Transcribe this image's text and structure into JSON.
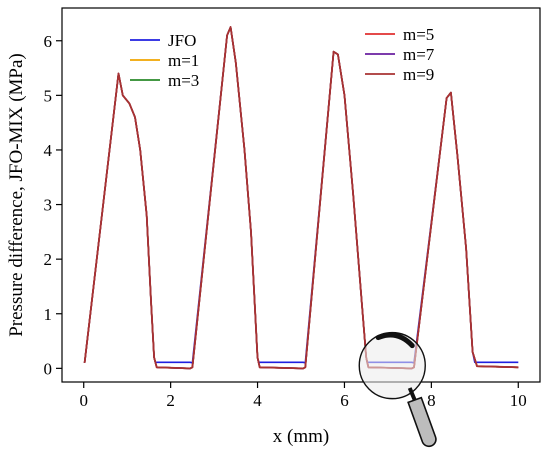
{
  "chart_data": {
    "type": "line",
    "xlabel": "x (mm)",
    "ylabel": "Pressure difference, JFO-MIX (MPa)",
    "xlim": [
      -0.5,
      10.5
    ],
    "ylim": [
      -0.25,
      6.6
    ],
    "xticks": [
      0,
      2,
      4,
      6,
      8,
      10
    ],
    "xtick_labels": [
      "0",
      "2",
      "4",
      "6",
      "8",
      "10"
    ],
    "yticks": [
      0,
      1,
      2,
      3,
      4,
      5,
      6
    ],
    "ytick_labels": [
      "0",
      "1",
      "2",
      "3",
      "4",
      "5",
      "6"
    ],
    "grid": false,
    "legend": [
      {
        "columns": "left",
        "entries": [
          "JFO",
          "m=1",
          "m=3"
        ]
      },
      {
        "columns": "right",
        "entries": [
          "m=5",
          "m=7",
          "m=9"
        ]
      }
    ],
    "series": [
      {
        "name": "JFO",
        "color": "#1f1fe0",
        "x": [
          0.02,
          0.8,
          0.9,
          1.05,
          1.18,
          1.3,
          1.45,
          1.55,
          1.62,
          1.65,
          2.45,
          2.5,
          3.3,
          3.38,
          3.5,
          3.7,
          3.85,
          4.0,
          4.03,
          5.05,
          5.1,
          5.75,
          5.85,
          6.0,
          6.2,
          6.4,
          6.5,
          6.52,
          7.55,
          7.6,
          8.35,
          8.45,
          8.6,
          8.8,
          8.95,
          9.0,
          10.0
        ],
        "y": [
          0.1,
          5.4,
          5.0,
          4.85,
          4.6,
          4.0,
          2.8,
          1.2,
          0.2,
          0.11,
          0.11,
          0.1,
          6.1,
          6.25,
          5.6,
          4.0,
          2.5,
          0.2,
          0.11,
          0.11,
          0.1,
          5.8,
          5.75,
          5.0,
          3.2,
          1.2,
          0.2,
          0.11,
          0.11,
          0.1,
          4.95,
          5.05,
          3.9,
          2.2,
          0.3,
          0.11,
          0.11
        ]
      },
      {
        "name": "m=1",
        "color": "#f0a500",
        "x": [
          0.02,
          0.8,
          0.9,
          1.05,
          1.18,
          1.3,
          1.45,
          1.55,
          1.62,
          1.68,
          2.45,
          2.5,
          3.3,
          3.38,
          3.5,
          3.7,
          3.85,
          4.0,
          4.05,
          5.05,
          5.1,
          5.75,
          5.85,
          6.0,
          6.2,
          6.4,
          6.5,
          6.55,
          7.55,
          7.6,
          8.35,
          8.45,
          8.6,
          8.8,
          8.95,
          9.05,
          10.0
        ],
        "y": [
          0.1,
          5.4,
          5.0,
          4.85,
          4.6,
          4.0,
          2.8,
          1.2,
          0.2,
          0.02,
          0.0,
          0.02,
          6.1,
          6.25,
          5.6,
          4.0,
          2.5,
          0.2,
          0.02,
          0.0,
          0.02,
          5.8,
          5.75,
          5.0,
          3.2,
          1.2,
          0.2,
          0.02,
          0.0,
          0.02,
          4.95,
          5.05,
          3.9,
          2.2,
          0.3,
          0.04,
          0.02
        ]
      },
      {
        "name": "m=3",
        "color": "#2a8a2a",
        "x": [
          0.02,
          0.8,
          0.9,
          1.05,
          1.18,
          1.3,
          1.45,
          1.55,
          1.62,
          1.68,
          2.45,
          2.5,
          3.3,
          3.38,
          3.5,
          3.7,
          3.85,
          4.0,
          4.05,
          5.05,
          5.1,
          5.75,
          5.85,
          6.0,
          6.2,
          6.4,
          6.5,
          6.55,
          7.55,
          7.6,
          8.35,
          8.45,
          8.6,
          8.8,
          8.95,
          9.05,
          10.0
        ],
        "y": [
          0.1,
          5.4,
          5.0,
          4.85,
          4.6,
          4.0,
          2.8,
          1.2,
          0.2,
          0.02,
          0.0,
          0.02,
          6.1,
          6.25,
          5.6,
          4.0,
          2.5,
          0.2,
          0.02,
          0.0,
          0.02,
          5.8,
          5.75,
          5.0,
          3.2,
          1.2,
          0.2,
          0.02,
          0.0,
          0.02,
          4.95,
          5.05,
          3.9,
          2.2,
          0.3,
          0.04,
          0.02
        ]
      },
      {
        "name": "m=5",
        "color": "#e03030",
        "x": [
          0.02,
          0.8,
          0.9,
          1.05,
          1.18,
          1.3,
          1.45,
          1.55,
          1.62,
          1.68,
          2.45,
          2.5,
          3.3,
          3.38,
          3.5,
          3.7,
          3.85,
          4.0,
          4.05,
          5.05,
          5.1,
          5.75,
          5.85,
          6.0,
          6.2,
          6.4,
          6.5,
          6.55,
          7.55,
          7.6,
          8.35,
          8.45,
          8.6,
          8.8,
          8.95,
          9.05,
          10.0
        ],
        "y": [
          0.1,
          5.4,
          5.0,
          4.85,
          4.6,
          4.0,
          2.8,
          1.2,
          0.2,
          0.02,
          0.0,
          0.02,
          6.1,
          6.25,
          5.6,
          4.0,
          2.5,
          0.2,
          0.02,
          0.0,
          0.02,
          5.8,
          5.75,
          5.0,
          3.2,
          1.2,
          0.2,
          0.02,
          0.0,
          0.02,
          4.95,
          5.05,
          3.9,
          2.2,
          0.3,
          0.04,
          0.02
        ]
      },
      {
        "name": "m=7",
        "color": "#6a1fa0",
        "x": [
          0.02,
          0.8,
          0.9,
          1.05,
          1.18,
          1.3,
          1.45,
          1.55,
          1.62,
          1.68,
          2.45,
          2.5,
          3.3,
          3.38,
          3.5,
          3.7,
          3.85,
          4.0,
          4.05,
          5.05,
          5.1,
          5.75,
          5.85,
          6.0,
          6.2,
          6.4,
          6.5,
          6.55,
          7.55,
          7.6,
          8.35,
          8.45,
          8.6,
          8.8,
          8.95,
          9.05,
          10.0
        ],
        "y": [
          0.1,
          5.4,
          5.0,
          4.85,
          4.6,
          4.0,
          2.8,
          1.2,
          0.2,
          0.02,
          0.0,
          0.02,
          6.1,
          6.25,
          5.6,
          4.0,
          2.5,
          0.2,
          0.02,
          0.0,
          0.02,
          5.8,
          5.75,
          5.0,
          3.2,
          1.2,
          0.2,
          0.02,
          0.0,
          0.02,
          4.95,
          5.05,
          3.9,
          2.2,
          0.3,
          0.04,
          0.02
        ]
      },
      {
        "name": "m=9",
        "color": "#a83232",
        "x": [
          0.02,
          0.8,
          0.9,
          1.05,
          1.18,
          1.3,
          1.45,
          1.55,
          1.62,
          1.68,
          2.45,
          2.5,
          3.3,
          3.38,
          3.5,
          3.7,
          3.85,
          4.0,
          4.05,
          5.05,
          5.1,
          5.75,
          5.85,
          6.0,
          6.2,
          6.4,
          6.5,
          6.55,
          7.55,
          7.6,
          8.35,
          8.45,
          8.6,
          8.8,
          8.95,
          9.05,
          10.0
        ],
        "y": [
          0.1,
          5.4,
          5.0,
          4.85,
          4.6,
          4.0,
          2.8,
          1.2,
          0.2,
          0.02,
          0.0,
          0.02,
          6.1,
          6.25,
          5.6,
          4.0,
          2.5,
          0.2,
          0.02,
          0.0,
          0.02,
          5.8,
          5.75,
          5.0,
          3.2,
          1.2,
          0.2,
          0.02,
          0.0,
          0.02,
          4.95,
          5.05,
          3.9,
          2.2,
          0.3,
          0.04,
          0.02
        ]
      }
    ],
    "annotations": [
      {
        "type": "magnifier-icon",
        "x": 7.1,
        "y": 0.05
      }
    ]
  }
}
